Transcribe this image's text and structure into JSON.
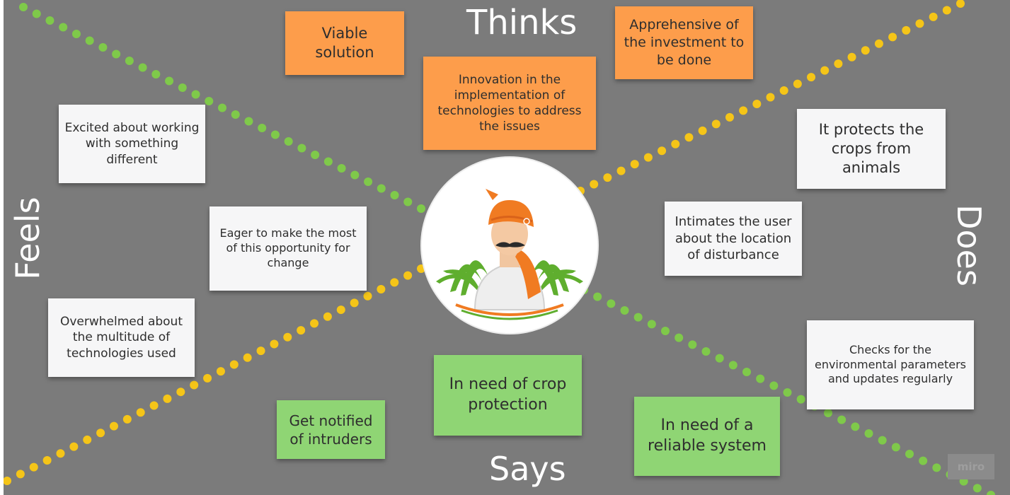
{
  "quadrants": {
    "thinks": "Thinks",
    "feels": "Feels",
    "does": "Does",
    "says": "Says"
  },
  "thinks_notes": [
    "Viable solution",
    "Innovation in the implementation of technologies to address the issues",
    "Apprehensive of the investment to be done"
  ],
  "feels_notes": [
    "Excited about working with something different",
    "Eager to make the most of this opportunity for change",
    "Overwhelmed about the multitude of technologies used"
  ],
  "does_notes": [
    "It protects the crops from animals",
    "Intimates the user about the location of disturbance",
    "Checks for the environmental parameters and updates regularly"
  ],
  "says_notes": [
    "In need of crop protection",
    "Get notified of intruders",
    "In need of a reliable system"
  ],
  "center": {
    "icon": "farmer-persona-icon"
  },
  "watermark": "miro",
  "colors": {
    "board": "#7b7b7b",
    "thinks_note": "#fd9d4b",
    "feels_does_note": "#f6f6f7",
    "says_note": "#8fd574",
    "dots_green": "#7fc94a",
    "dots_yellow": "#f5c518"
  }
}
